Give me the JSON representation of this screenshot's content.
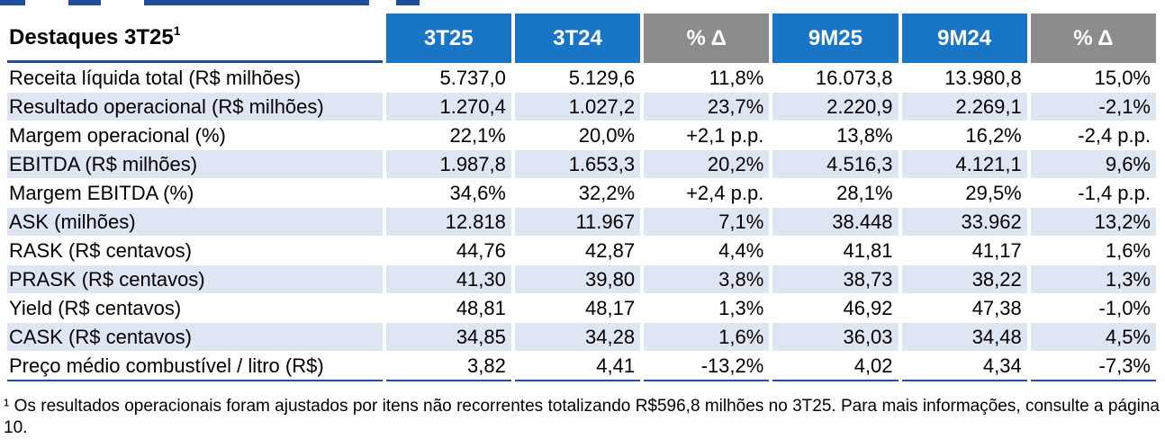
{
  "table": {
    "title": "Destaques 3T25",
    "title_footnote_mark": "1",
    "columns": [
      "3T25",
      "3T24",
      "% Δ",
      "9M25",
      "9M24",
      "% Δ"
    ],
    "rows": [
      {
        "label": "Receita líquida total (R$ milhões)",
        "values": [
          "5.737,0",
          "5.129,6",
          "11,8%",
          "16.073,8",
          "13.980,8",
          "15,0%"
        ]
      },
      {
        "label": "Resultado operacional (R$ milhões)",
        "values": [
          "1.270,4",
          "1.027,2",
          "23,7%",
          "2.220,9",
          "2.269,1",
          "-2,1%"
        ]
      },
      {
        "label": "Margem operacional (%)",
        "values": [
          "22,1%",
          "20,0%",
          "+2,1 p.p.",
          "13,8%",
          "16,2%",
          "-2,4 p.p."
        ]
      },
      {
        "label": "EBITDA (R$ milhões)",
        "values": [
          "1.987,8",
          "1.653,3",
          "20,2%",
          "4.516,3",
          "4.121,1",
          "9,6%"
        ]
      },
      {
        "label": "Margem EBITDA (%)",
        "values": [
          "34,6%",
          "32,2%",
          "+2,4 p.p.",
          "28,1%",
          "29,5%",
          "-1,4 p.p."
        ]
      },
      {
        "label": "ASK (milhões)",
        "values": [
          "12.818",
          "11.967",
          "7,1%",
          "38.448",
          "33.962",
          "13,2%"
        ]
      },
      {
        "label": "RASK (R$ centavos)",
        "values": [
          "44,76",
          "42,87",
          "4,4%",
          "41,81",
          "41,17",
          "1,6%"
        ]
      },
      {
        "label": "PRASK (R$ centavos)",
        "values": [
          "41,30",
          "39,80",
          "3,8%",
          "38,73",
          "38,22",
          "1,3%"
        ]
      },
      {
        "label": "Yield (R$ centavos)",
        "values": [
          "48,81",
          "48,17",
          "1,3%",
          "46,92",
          "47,38",
          "-1,0%"
        ]
      },
      {
        "label": "CASK (R$ centavos)",
        "values": [
          "34,85",
          "34,28",
          "1,6%",
          "36,03",
          "34,48",
          "4,5%"
        ]
      },
      {
        "label": "Preço médio combustível / litro (R$)",
        "values": [
          "3,82",
          "4,41",
          "-13,2%",
          "4,02",
          "4,34",
          "-7,3%"
        ]
      }
    ]
  },
  "footnote": "¹ Os resultados operacionais foram ajustados por itens não recorrentes totalizando R$596,8 milhões no 3T25. Para mais informações, consulte a página 10.",
  "colors": {
    "header_blue": "#1976c6",
    "header_gray": "#8c8c8c",
    "row_stripe": "#dfe6f3",
    "rule_blue": "#1f4e9a"
  }
}
